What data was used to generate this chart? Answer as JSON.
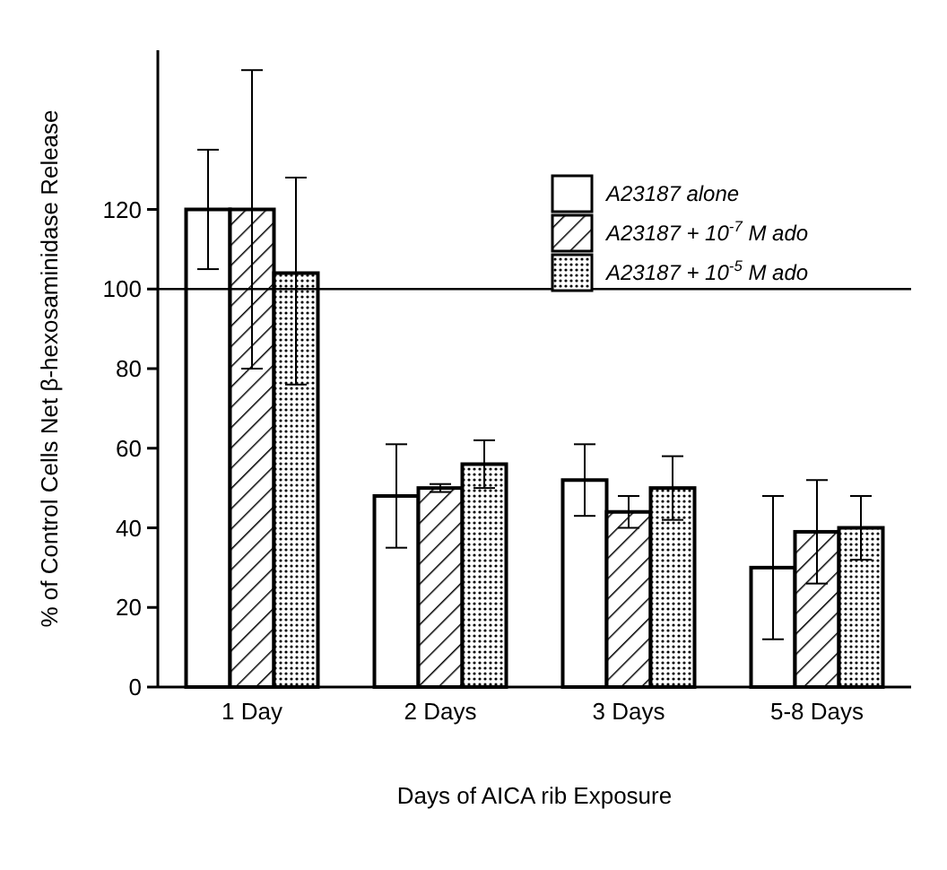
{
  "chart_data": {
    "type": "bar",
    "xlabel": "Days of AICA rib Exposure",
    "ylabel": "% of Control Cells Net β-hexosaminidase Release",
    "categories": [
      "1 Day",
      "2 Days",
      "3 Days",
      "5-8 Days"
    ],
    "series": [
      {
        "name": "A23187 alone",
        "color": "#ffffff",
        "values": [
          120,
          48,
          52,
          30
        ],
        "errors": [
          15,
          13,
          9,
          18
        ]
      },
      {
        "name": "A23187 + 10$^{-7}$ M ado",
        "color": "#ffffff",
        "values": [
          120,
          50,
          44,
          39
        ],
        "errors": [
          [
            80,
            155
          ],
          1,
          4,
          13
        ]
      },
      {
        "name": "A23187 + 10$^{-5}$ M ado",
        "color": "#ffffff",
        "values": [
          104,
          56,
          50,
          40
        ],
        "errors": [
          [
            76,
            128
          ],
          6,
          8,
          8
        ]
      }
    ],
    "ylim": [
      0,
      160
    ],
    "yticks": [
      0,
      20,
      40,
      60,
      80,
      100,
      120
    ],
    "ref_lines": [
      {
        "axis": "y",
        "value": 100
      }
    ],
    "legend": "top right",
    "grid": false
  }
}
